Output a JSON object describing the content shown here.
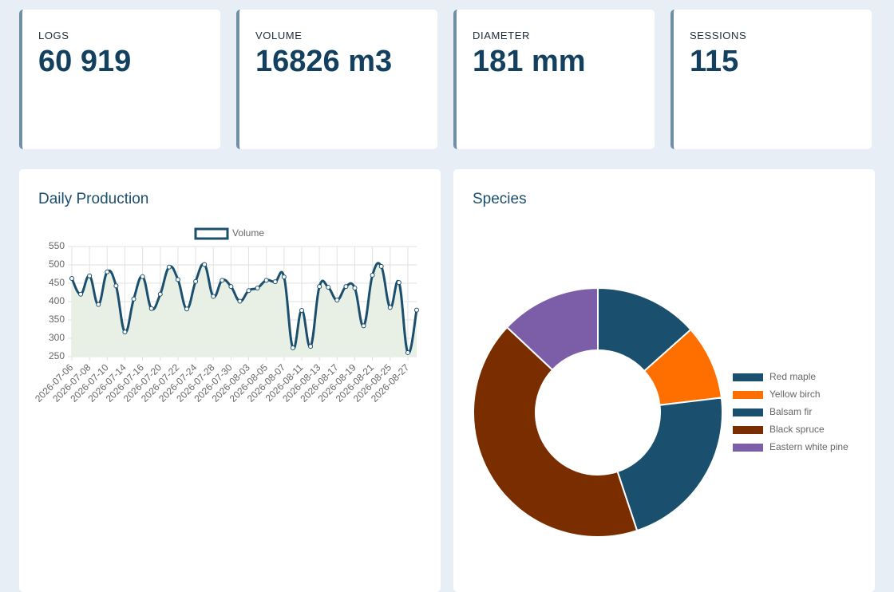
{
  "kpis": [
    {
      "label": "LOGS",
      "value": "60 919"
    },
    {
      "label": "VOLUME",
      "value": "16826 m3"
    },
    {
      "label": "DIAMETER",
      "value": "181 mm"
    },
    {
      "label": "SESSIONS",
      "value": "115"
    }
  ],
  "chart_data": [
    {
      "type": "line",
      "title": "Daily Production",
      "x": [
        "2026-07-06",
        null,
        "2026-07-08",
        null,
        "2026-07-10",
        null,
        "2026-07-14",
        null,
        "2026-07-16",
        null,
        "2026-07-20",
        null,
        "2026-07-22",
        null,
        "2026-07-24",
        null,
        "2026-07-28",
        null,
        "2026-07-30",
        null,
        "2026-08-03",
        null,
        "2026-08-05",
        null,
        "2026-08-07",
        null,
        "2026-08-11",
        null,
        "2026-08-13",
        null,
        "2026-08-17",
        null,
        "2026-08-19",
        null,
        "2026-08-21",
        null,
        "2026-08-25",
        null,
        "2026-08-27",
        null
      ],
      "series": [
        {
          "name": "Volume",
          "color": "#1b4f6e",
          "fill": "#e8f0e6",
          "values": [
            463,
            420,
            470,
            392,
            481,
            443,
            317,
            407,
            468,
            381,
            420,
            494,
            460,
            380,
            455,
            501,
            414,
            458,
            441,
            401,
            430,
            437,
            458,
            454,
            467,
            274,
            376,
            278,
            441,
            439,
            404,
            441,
            437,
            334,
            472,
            496,
            384,
            452,
            261,
            377
          ]
        }
      ],
      "ylim": [
        250,
        550
      ],
      "yticks": [
        250,
        300,
        350,
        400,
        450,
        500,
        550
      ],
      "grid": true,
      "legend": "top"
    },
    {
      "type": "pie",
      "title": "Species",
      "hole": 0.5,
      "legend": "right",
      "categories": [
        "Red maple",
        "Yellow birch",
        "Balsam fir",
        "Black spruce",
        "Eastern white pine"
      ],
      "values": [
        13.4,
        9.7,
        21.8,
        42.1,
        13.0
      ],
      "colors": [
        "#1b4f6e",
        "#ff6f00",
        "#1b4f6e",
        "#7a2e00",
        "#7b5ea7"
      ]
    }
  ]
}
